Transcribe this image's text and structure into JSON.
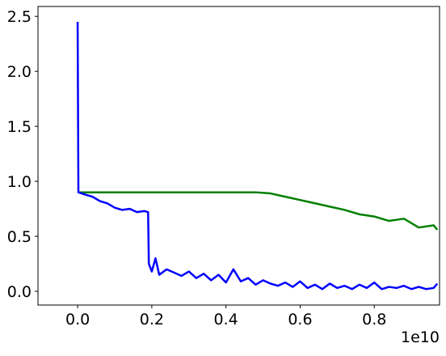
{
  "chart_data": {
    "type": "line",
    "x_offset_label": "1e10",
    "xlim": [
      -0.107,
      0.976
    ],
    "ylim": [
      -0.125,
      2.59
    ],
    "xticks": [
      {
        "value": 0,
        "label": "0.0"
      },
      0.2,
      0.4,
      0.6,
      0.8
    ],
    "yticks": [
      {
        "value": 0,
        "label": "0.0"
      },
      0.5,
      {
        "value": 1,
        "label": "1.0"
      },
      1.5,
      {
        "value": 2,
        "label": "2.0"
      },
      2.5
    ],
    "series": [
      {
        "color": "#008000",
        "x": [
          0.002,
          0.04,
          0.08,
          0.12,
          0.16,
          0.2,
          0.24,
          0.28,
          0.32,
          0.36,
          0.4,
          0.44,
          0.48,
          0.52,
          0.56,
          0.6,
          0.64,
          0.68,
          0.72,
          0.76,
          0.8,
          0.84,
          0.88,
          0.92,
          0.96,
          0.97
        ],
        "values": [
          0.9,
          0.9,
          0.9,
          0.9,
          0.9,
          0.9,
          0.9,
          0.9,
          0.9,
          0.9,
          0.9,
          0.9,
          0.9,
          0.89,
          0.86,
          0.83,
          0.8,
          0.77,
          0.74,
          0.7,
          0.68,
          0.64,
          0.66,
          0.58,
          0.6,
          0.56
        ]
      },
      {
        "color": "#0000ff",
        "x": [
          0,
          0.002,
          0.02,
          0.04,
          0.06,
          0.08,
          0.1,
          0.12,
          0.14,
          0.16,
          0.18,
          0.19,
          0.192,
          0.2,
          0.21,
          0.22,
          0.24,
          0.26,
          0.28,
          0.3,
          0.32,
          0.34,
          0.36,
          0.38,
          0.4,
          0.42,
          0.44,
          0.46,
          0.48,
          0.5,
          0.52,
          0.54,
          0.56,
          0.58,
          0.6,
          0.62,
          0.64,
          0.66,
          0.68,
          0.7,
          0.72,
          0.74,
          0.76,
          0.78,
          0.8,
          0.82,
          0.84,
          0.86,
          0.88,
          0.9,
          0.92,
          0.94,
          0.96,
          0.97
        ],
        "values": [
          2.45,
          0.9,
          0.88,
          0.86,
          0.82,
          0.8,
          0.76,
          0.74,
          0.75,
          0.72,
          0.73,
          0.72,
          0.25,
          0.18,
          0.3,
          0.15,
          0.2,
          0.17,
          0.14,
          0.18,
          0.12,
          0.16,
          0.1,
          0.15,
          0.08,
          0.2,
          0.09,
          0.12,
          0.06,
          0.1,
          0.07,
          0.05,
          0.08,
          0.04,
          0.09,
          0.03,
          0.06,
          0.02,
          0.07,
          0.03,
          0.05,
          0.02,
          0.06,
          0.03,
          0.08,
          0.02,
          0.04,
          0.03,
          0.05,
          0.02,
          0.04,
          0.02,
          0.03,
          0.07
        ]
      }
    ]
  }
}
